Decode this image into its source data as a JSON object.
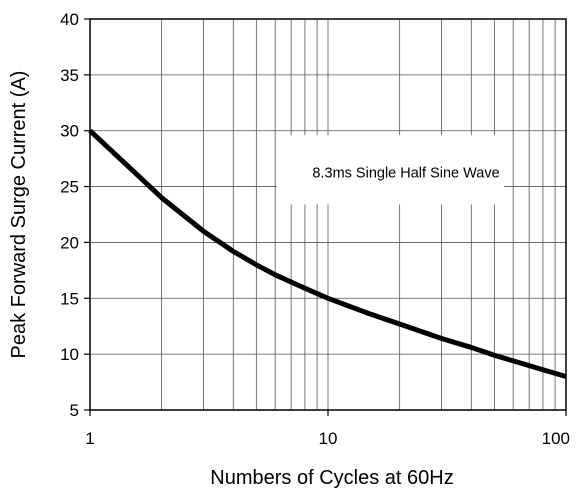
{
  "chart_data": {
    "type": "line",
    "title": "",
    "xlabel": "Numbers of Cycles at 60Hz",
    "ylabel": "Peak Forward Surge Current (A)",
    "x_scale": "log",
    "xlim": [
      1,
      100
    ],
    "ylim": [
      5,
      40
    ],
    "x_ticks": [
      1,
      10,
      100
    ],
    "x_tick_labels": [
      "1",
      "10",
      "100"
    ],
    "y_ticks": [
      5,
      10,
      15,
      20,
      25,
      30,
      35,
      40
    ],
    "y_tick_labels": [
      "5",
      "10",
      "15",
      "20",
      "25",
      "30",
      "35",
      "40"
    ],
    "grid": true,
    "annotation": "8.3ms Single Half Sine Wave",
    "series": [
      {
        "x": [
          1,
          1.5,
          2,
          3,
          4,
          5,
          6,
          8,
          10,
          15,
          20,
          30,
          40,
          50,
          60,
          80,
          100
        ],
        "y": [
          30,
          26.5,
          24,
          21,
          19.2,
          18,
          17.1,
          15.9,
          15,
          13.6,
          12.7,
          11.4,
          10.6,
          9.9,
          9.4,
          8.6,
          8
        ]
      }
    ],
    "colors": {
      "line": "#000000",
      "grid": "#555555",
      "frame": "#000000",
      "background": "#ffffff"
    }
  }
}
